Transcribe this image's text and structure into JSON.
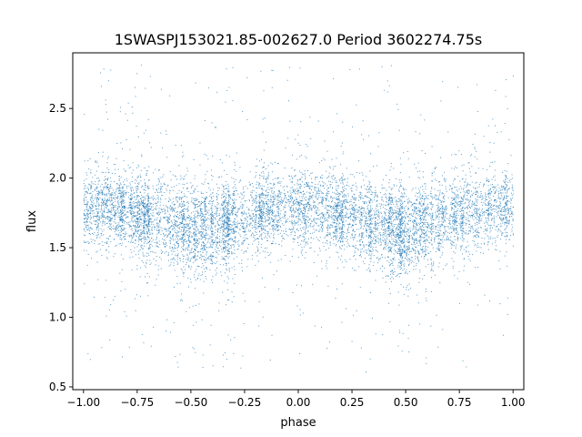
{
  "chart_data": {
    "type": "scatter",
    "title": "1SWASPJ153021.85-002627.0 Period 3602274.75s",
    "xlabel": "phase",
    "ylabel": "flux",
    "xlim": [
      -1.05,
      1.05
    ],
    "ylim": [
      0.48,
      2.9
    ],
    "xticks": [
      -1.0,
      -0.75,
      -0.5,
      -0.25,
      0.0,
      0.25,
      0.5,
      0.75,
      1.0
    ],
    "xtick_labels": [
      "−1.00",
      "−0.75",
      "−0.50",
      "−0.25",
      "0.00",
      "0.25",
      "0.50",
      "0.75",
      "1.00"
    ],
    "yticks": [
      0.5,
      1.0,
      1.5,
      2.0,
      2.5
    ],
    "ytick_labels": [
      "0.5",
      "1.0",
      "1.5",
      "2.0",
      "2.5"
    ],
    "grid": false,
    "legend": "none",
    "point_color": "#1f77b4",
    "data_range": {
      "x": [
        -1.0,
        1.0
      ],
      "y": [
        0.6,
        2.82
      ]
    },
    "envelope": {
      "x": [
        -1.0,
        -0.875,
        -0.75,
        -0.625,
        -0.5,
        -0.375,
        -0.25,
        -0.125,
        0.0,
        0.125,
        0.25,
        0.375,
        0.5,
        0.625,
        0.75,
        0.875,
        1.0
      ],
      "center": [
        1.78,
        1.8,
        1.74,
        1.68,
        1.62,
        1.66,
        1.72,
        1.78,
        1.8,
        1.78,
        1.72,
        1.66,
        1.62,
        1.68,
        1.74,
        1.78,
        1.8
      ],
      "lower": [
        1.5,
        1.55,
        1.45,
        1.35,
        1.25,
        1.35,
        1.45,
        1.5,
        1.55,
        1.5,
        1.45,
        1.35,
        1.25,
        1.35,
        1.45,
        1.5,
        1.55
      ],
      "upper": [
        2.05,
        2.08,
        2.05,
        2.0,
        1.95,
        2.0,
        2.05,
        2.08,
        2.1,
        2.08,
        2.05,
        2.0,
        1.95,
        2.0,
        2.05,
        2.08,
        2.05
      ]
    }
  }
}
